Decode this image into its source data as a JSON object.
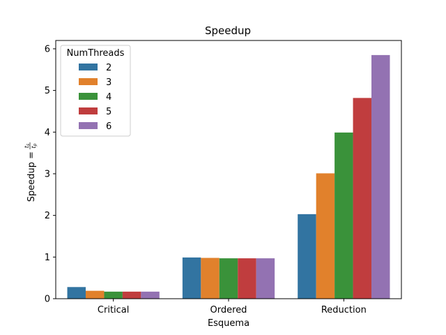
{
  "chart_data": {
    "type": "bar",
    "title": "Speedup",
    "xlabel": "Esquema",
    "ylabel_main": "Speedup = ",
    "ylabel_frac": {
      "num": "t",
      "num_sub": "s",
      "den": "t",
      "den_sub": "p"
    },
    "categories": [
      "Critical",
      "Ordered",
      "Reduction"
    ],
    "ylim": [
      0,
      6.2
    ],
    "yticks": [
      0,
      1,
      2,
      3,
      4,
      5,
      6
    ],
    "legend_title": "NumThreads",
    "legend_position": "top-left",
    "grid": false,
    "series": [
      {
        "name": "2",
        "color": "#3274a1",
        "values": [
          0.28,
          0.99,
          2.03
        ]
      },
      {
        "name": "3",
        "color": "#e1812c",
        "values": [
          0.19,
          0.98,
          3.01
        ]
      },
      {
        "name": "4",
        "color": "#3a923a",
        "values": [
          0.17,
          0.97,
          3.99
        ]
      },
      {
        "name": "5",
        "color": "#c03d3e",
        "values": [
          0.17,
          0.97,
          4.82
        ]
      },
      {
        "name": "6",
        "color": "#9372b2",
        "values": [
          0.17,
          0.97,
          5.85
        ]
      }
    ]
  }
}
